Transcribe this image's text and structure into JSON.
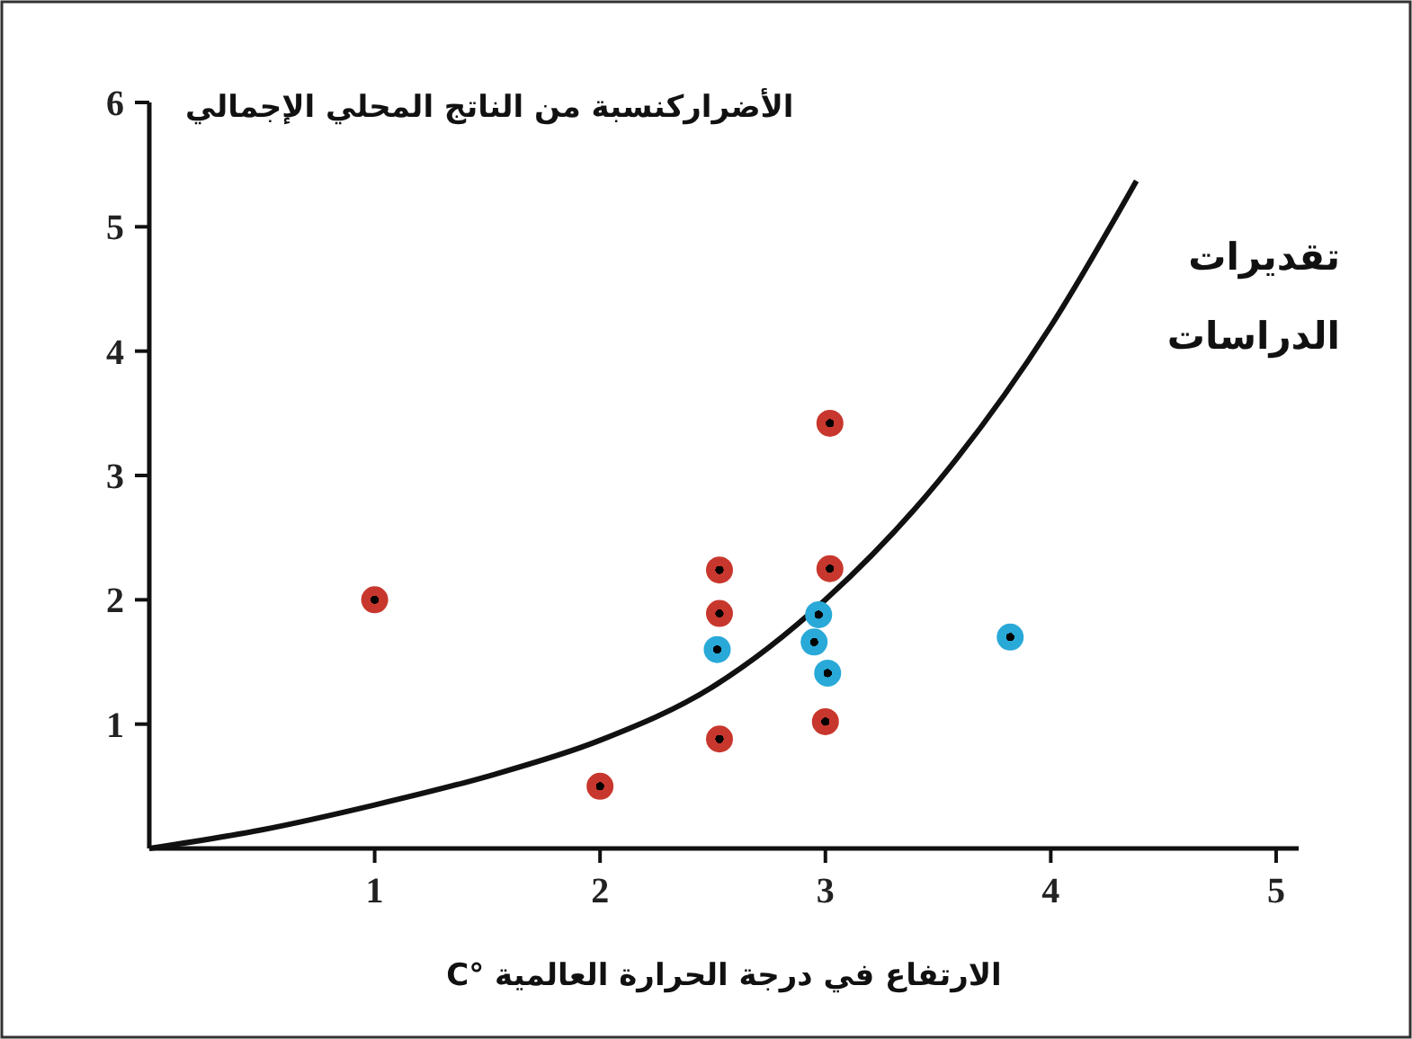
{
  "chart_data": {
    "type": "scatter",
    "xlabel": "الارتفاع في درجة الحرارة العالمية °C",
    "ylabel": "الأضراركنسبة من الناتج المحلي الإجمالي",
    "xlim": [
      0,
      5.1
    ],
    "ylim": [
      0,
      6
    ],
    "xticks": [
      1,
      2,
      3,
      4,
      5
    ],
    "yticks": [
      1,
      2,
      3,
      4,
      5,
      6
    ],
    "grid": false,
    "series": [
      {
        "type": "line",
        "color": "#111111",
        "marker": "none",
        "line_style": "solid",
        "x": [
          0,
          0.5,
          1,
          1.5,
          2,
          2.5,
          3,
          3.5,
          4,
          4.38
        ],
        "values": [
          0,
          0.15,
          0.35,
          0.58,
          0.87,
          1.3,
          2.0,
          2.95,
          4.2,
          5.37
        ]
      },
      {
        "color": "#c8372d",
        "marker": "circle",
        "x": [
          1.0,
          2.0,
          2.53,
          2.53,
          2.53,
          3.02,
          3.02,
          3.0
        ],
        "values": [
          2.0,
          0.5,
          2.24,
          1.89,
          0.88,
          3.42,
          2.25,
          1.02
        ]
      },
      {
        "color": "#29a9d8",
        "marker": "circle",
        "x": [
          2.52,
          2.97,
          2.95,
          3.01,
          3.82
        ],
        "values": [
          1.6,
          1.88,
          1.66,
          1.41,
          1.7
        ]
      }
    ],
    "annotations": [
      "تقديرات الدراسات"
    ]
  }
}
